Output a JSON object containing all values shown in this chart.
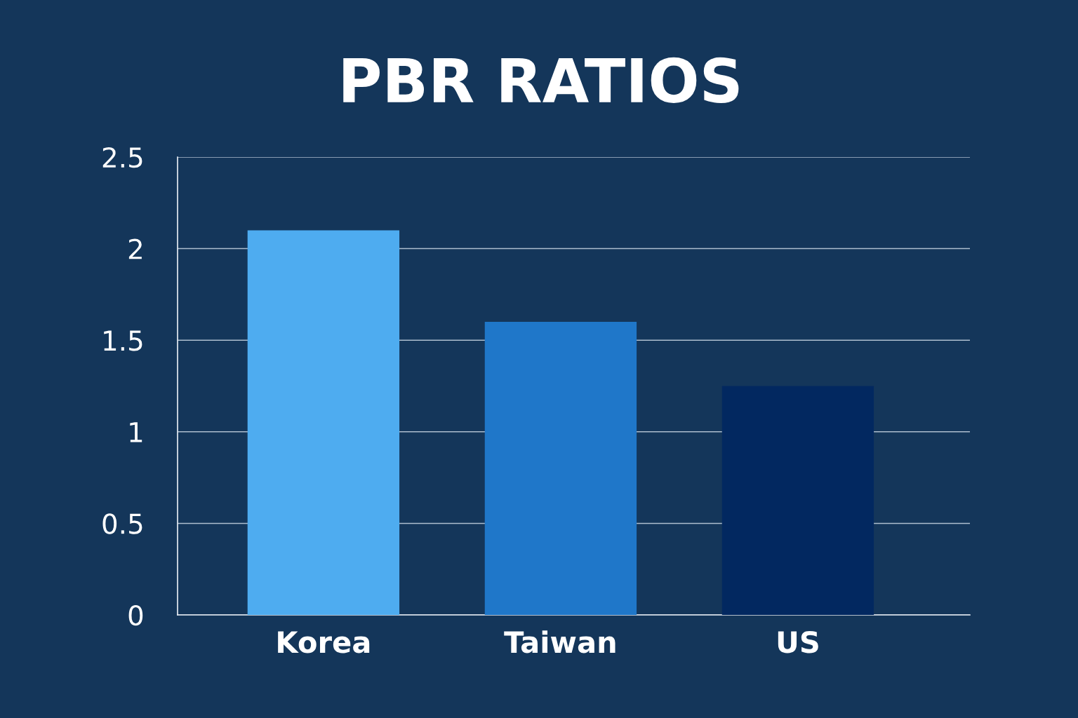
{
  "chart_data": {
    "type": "bar",
    "title": "PBR RATIOS",
    "categories": [
      "Korea",
      "Taiwan",
      "US"
    ],
    "values": [
      2.1,
      1.6,
      1.25
    ],
    "colors": [
      "#4eacf0",
      "#1f77c9",
      "#022860"
    ],
    "ylim": [
      0,
      2.5
    ],
    "yticks": [
      0,
      0.5,
      1,
      1.5,
      2,
      2.5
    ],
    "grid": "y"
  }
}
